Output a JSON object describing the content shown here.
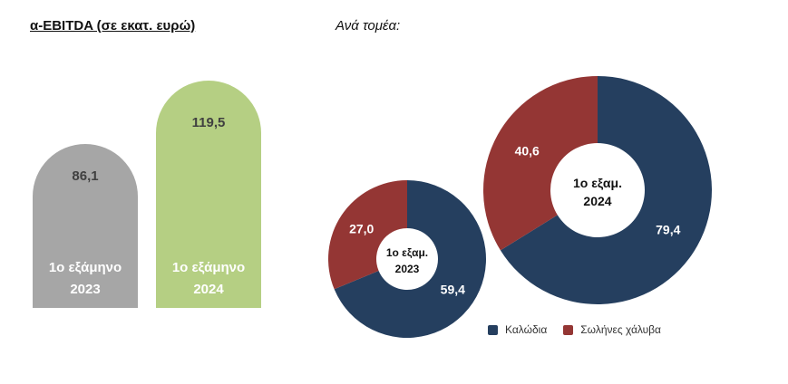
{
  "left_title": "α-EBITDA (σε εκατ. ευρώ)",
  "right_title": "Ανά τομέα:",
  "chart_data": [
    {
      "type": "bar",
      "categories": [
        "1ο εξάμηνο 2023",
        "1ο εξάμηνο 2024"
      ],
      "category_lines": [
        [
          "1ο εξάμηνο",
          "2023"
        ],
        [
          "1ο εξάμηνο",
          "2024"
        ]
      ],
      "values": [
        86.1,
        119.5
      ],
      "value_labels": [
        "86,1",
        "119,5"
      ],
      "colors": [
        "#a6a6a6",
        "#b5cf83"
      ],
      "title": "α-EBITDA (σε εκατ. ευρώ)"
    },
    {
      "type": "pie",
      "subtype": "donut",
      "center_label": [
        "1ο εξαμ.",
        "2023"
      ],
      "labels": [
        "Καλώδια",
        "Σωλήνες χάλυβα"
      ],
      "values": [
        59.4,
        27.0
      ],
      "value_labels": [
        "59,4",
        "27,0"
      ],
      "colors": [
        "#253f5f",
        "#943634"
      ]
    },
    {
      "type": "pie",
      "subtype": "donut",
      "center_label": [
        "1ο εξαμ.",
        "2024"
      ],
      "labels": [
        "Καλώδια",
        "Σωλήνες χάλυβα"
      ],
      "values": [
        79.4,
        40.6
      ],
      "value_labels": [
        "79,4",
        "40,6"
      ],
      "colors": [
        "#253f5f",
        "#943634"
      ]
    }
  ],
  "legend": [
    {
      "label": "Καλώδια",
      "color": "#253f5f"
    },
    {
      "label": "Σωλήνες χάλυβα",
      "color": "#943634"
    }
  ]
}
